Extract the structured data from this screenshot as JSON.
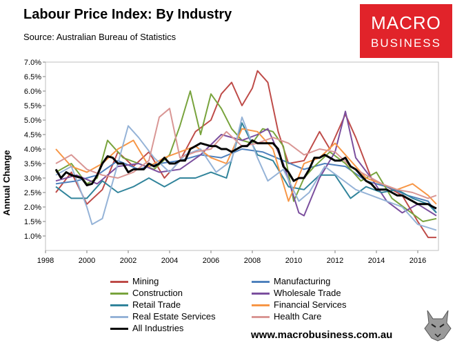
{
  "header": {
    "title": "Labour Price Index: By Industry",
    "source": "Source: Australian Bureau of Statistics"
  },
  "logo": {
    "line1": "MACRO",
    "line2": "BUSINESS"
  },
  "footer": {
    "website": "www.macrobusiness.com.au"
  },
  "chart_data": {
    "type": "line",
    "title": "Labour Price Index: By Industry",
    "xlabel": "",
    "ylabel": "Annual Change",
    "xlim": [
      1998,
      2017
    ],
    "ylim": [
      0.5,
      7.0
    ],
    "y_ticks": [
      "1.0%",
      "1.5%",
      "2.0%",
      "2.5%",
      "3.0%",
      "3.5%",
      "4.0%",
      "4.5%",
      "5.0%",
      "5.5%",
      "6.0%",
      "6.5%",
      "7.0%"
    ],
    "x_ticks": [
      "1998",
      "2000",
      "2002",
      "2004",
      "2006",
      "2008",
      "2010",
      "2012",
      "2014",
      "2016"
    ],
    "legend_position": "bottom",
    "series": [
      {
        "name": "Mining",
        "color": "#be4b48",
        "x": [
          1998.5,
          1999.25,
          2000,
          2000.75,
          2001.5,
          2002.25,
          2003,
          2003.75,
          2004.5,
          2005.25,
          2006,
          2006.5,
          2007,
          2007.5,
          2008,
          2008.25,
          2008.75,
          2009.25,
          2009.75,
          2010.5,
          2011.25,
          2011.75,
          2012.5,
          2013,
          2013.75,
          2014.5,
          2015.25,
          2016,
          2016.5,
          2016.9
        ],
        "values": [
          2.5,
          3.2,
          2.1,
          2.6,
          3.9,
          3.4,
          3.9,
          3.0,
          3.6,
          4.6,
          5.0,
          5.9,
          6.3,
          5.5,
          6.1,
          6.7,
          6.3,
          4.6,
          3.5,
          3.6,
          4.6,
          4.0,
          5.2,
          4.4,
          3.0,
          2.7,
          2.4,
          1.5,
          0.95,
          0.95
        ]
      },
      {
        "name": "Manufacturing",
        "color": "#4f81bd",
        "x": [
          1998.5,
          1999.5,
          2000.5,
          2001.5,
          2002.5,
          2003.5,
          2004.5,
          2005.5,
          2006.5,
          2007.5,
          2008.5,
          2009.5,
          2010.5,
          2011.5,
          2012.5,
          2013.5,
          2014.5,
          2015.5,
          2016.5,
          2016.9
        ],
        "values": [
          2.8,
          2.9,
          3.1,
          3.6,
          3.3,
          3.5,
          3.6,
          3.8,
          3.7,
          4.0,
          3.9,
          3.6,
          3.3,
          3.5,
          3.4,
          2.9,
          2.7,
          2.4,
          2.2,
          1.8
        ]
      },
      {
        "name": "Construction",
        "color": "#78a33c",
        "x": [
          1998.5,
          1999.25,
          2000,
          2000.5,
          2001,
          2001.75,
          2002.5,
          2003.25,
          2004,
          2004.5,
          2005,
          2005.5,
          2006,
          2006.5,
          2007,
          2007.5,
          2008,
          2008.5,
          2009,
          2009.5,
          2010,
          2010.5,
          2011,
          2011.75,
          2012.5,
          2013.25,
          2014,
          2014.75,
          2015.5,
          2016.25,
          2016.9
        ],
        "values": [
          3.2,
          3.5,
          2.8,
          3.0,
          4.3,
          3.7,
          3.5,
          3.3,
          3.8,
          4.8,
          6.0,
          4.5,
          5.9,
          5.4,
          4.7,
          4.3,
          4.2,
          4.7,
          4.6,
          4.1,
          2.2,
          3.0,
          3.4,
          3.9,
          3.5,
          2.9,
          3.2,
          2.3,
          1.9,
          1.5,
          1.6
        ]
      },
      {
        "name": "Wholesale Trade",
        "color": "#7b4f9e",
        "x": [
          1998.5,
          1999.5,
          2000.5,
          2001.5,
          2002.5,
          2003.5,
          2004.5,
          2005.5,
          2006.5,
          2007.5,
          2008.25,
          2008.75,
          2009.5,
          2010.25,
          2010.5,
          2011.25,
          2012,
          2012.5,
          2013,
          2013.75,
          2014.5,
          2015.25,
          2016,
          2016.9
        ],
        "values": [
          2.9,
          3.1,
          2.8,
          3.4,
          3.5,
          3.2,
          3.3,
          3.8,
          4.5,
          4.3,
          4.5,
          4.7,
          3.5,
          1.8,
          1.7,
          3.0,
          3.9,
          5.3,
          3.7,
          3.0,
          2.2,
          1.8,
          2.1,
          1.7
        ]
      },
      {
        "name": "Retail Trade",
        "color": "#31849b",
        "x": [
          1998.5,
          1999.25,
          2000,
          2000.75,
          2001.5,
          2002.25,
          2003,
          2003.75,
          2004.5,
          2005.25,
          2006,
          2006.75,
          2007.5,
          2008.25,
          2009,
          2009.75,
          2010.5,
          2011.25,
          2012,
          2012.75,
          2013.5,
          2014.25,
          2015,
          2015.75,
          2016.5,
          2016.9
        ],
        "values": [
          2.7,
          2.3,
          2.3,
          2.9,
          2.5,
          2.7,
          3.0,
          2.7,
          3.0,
          3.0,
          3.2,
          3.0,
          4.9,
          3.8,
          3.6,
          2.7,
          2.6,
          3.1,
          3.1,
          2.3,
          2.7,
          2.5,
          2.6,
          2.3,
          2.1,
          1.8
        ]
      },
      {
        "name": "Financial Services",
        "color": "#f79646",
        "x": [
          1998.5,
          1999.25,
          2000,
          2000.75,
          2001.5,
          2002.25,
          2003,
          2003.75,
          2004.5,
          2005.25,
          2006,
          2006.75,
          2007.5,
          2008.25,
          2009,
          2009.75,
          2010.5,
          2011.25,
          2012,
          2012.75,
          2013.5,
          2014.25,
          2015,
          2015.75,
          2016.5,
          2016.9
        ],
        "values": [
          4.0,
          3.4,
          3.2,
          3.5,
          4.0,
          4.3,
          3.4,
          3.7,
          3.9,
          4.1,
          3.7,
          3.5,
          4.7,
          4.6,
          4.0,
          2.2,
          3.5,
          3.7,
          4.2,
          3.6,
          3.0,
          2.8,
          2.6,
          2.8,
          2.4,
          2.1
        ]
      },
      {
        "name": "Real Estate Services",
        "color": "#95b3d7",
        "x": [
          1998.5,
          1999.25,
          2000,
          2000.25,
          2000.75,
          2001.5,
          2002,
          2002.5,
          2003.25,
          2004,
          2004.75,
          2005.5,
          2006.25,
          2007,
          2007.5,
          2008.25,
          2008.75,
          2009.5,
          2010.25,
          2010.75,
          2011.5,
          2012.25,
          2013,
          2013.75,
          2014.5,
          2015.25,
          2016,
          2016.9
        ],
        "values": [
          3.1,
          3.4,
          2.0,
          1.4,
          1.6,
          3.5,
          4.8,
          4.4,
          3.7,
          3.2,
          3.8,
          4.0,
          3.2,
          3.6,
          5.1,
          3.7,
          2.9,
          3.3,
          2.2,
          2.5,
          3.4,
          3.0,
          2.6,
          2.4,
          2.2,
          2.0,
          1.4,
          1.2
        ]
      },
      {
        "name": "Health Care",
        "color": "#d99694",
        "x": [
          1998.5,
          1999.25,
          2000,
          2000.75,
          2001.5,
          2002.25,
          2003,
          2003.5,
          2004,
          2004.5,
          2005.25,
          2006,
          2006.75,
          2007.5,
          2008.25,
          2009,
          2009.75,
          2010.5,
          2011.25,
          2012,
          2012.75,
          2013.5,
          2014.25,
          2015,
          2015.75,
          2016.5,
          2016.9
        ],
        "values": [
          3.5,
          3.8,
          3.3,
          3.1,
          3.0,
          3.2,
          3.6,
          5.1,
          5.4,
          3.7,
          3.9,
          4.0,
          4.6,
          4.1,
          4.2,
          4.4,
          4.2,
          3.8,
          4.0,
          3.9,
          3.4,
          3.1,
          2.8,
          2.6,
          2.5,
          2.3,
          2.4
        ]
      },
      {
        "name": "All Industries",
        "color": "#000000",
        "x": [
          1998.5,
          1998.75,
          1999,
          1999.25,
          1999.5,
          1999.75,
          2000,
          2000.25,
          2000.5,
          2000.75,
          2001,
          2001.25,
          2001.5,
          2001.75,
          2002,
          2002.25,
          2002.5,
          2002.75,
          2003,
          2003.25,
          2003.5,
          2003.75,
          2004,
          2004.25,
          2004.5,
          2004.75,
          2005,
          2005.25,
          2005.5,
          2005.75,
          2006,
          2006.25,
          2006.5,
          2006.75,
          2007,
          2007.25,
          2007.5,
          2007.75,
          2008,
          2008.25,
          2008.5,
          2008.75,
          2009,
          2009.25,
          2009.5,
          2009.75,
          2010,
          2010.25,
          2010.5,
          2010.75,
          2011,
          2011.25,
          2011.5,
          2011.75,
          2012,
          2012.25,
          2012.5,
          2012.75,
          2013,
          2013.25,
          2013.5,
          2013.75,
          2014,
          2014.25,
          2014.5,
          2014.75,
          2015,
          2015.25,
          2015.5,
          2015.75,
          2016,
          2016.25,
          2016.5,
          2016.75,
          2016.9
        ],
        "values": [
          3.3,
          3.0,
          3.2,
          3.1,
          3.05,
          3.0,
          2.75,
          2.8,
          3.1,
          3.5,
          3.75,
          3.7,
          3.5,
          3.5,
          3.2,
          3.3,
          3.3,
          3.3,
          3.5,
          3.4,
          3.5,
          3.7,
          3.5,
          3.5,
          3.6,
          3.6,
          4.0,
          4.1,
          4.2,
          4.15,
          4.1,
          4.1,
          4.0,
          4.0,
          3.9,
          4.0,
          4.1,
          4.1,
          4.3,
          4.2,
          4.2,
          4.2,
          4.2,
          4.0,
          3.4,
          3.2,
          2.9,
          3.0,
          3.0,
          3.3,
          3.7,
          3.7,
          3.8,
          3.7,
          3.6,
          3.6,
          3.7,
          3.4,
          3.3,
          3.1,
          2.9,
          2.8,
          2.6,
          2.6,
          2.6,
          2.5,
          2.4,
          2.4,
          2.3,
          2.2,
          2.1,
          2.1,
          2.1,
          2.0,
          1.95
        ]
      }
    ]
  }
}
